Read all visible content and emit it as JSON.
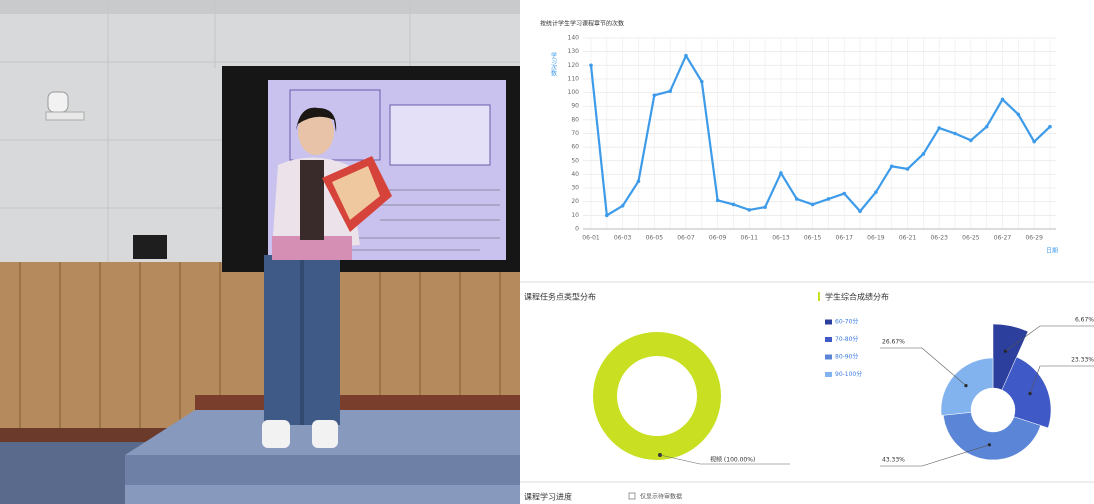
{
  "chart_data": [
    {
      "type": "line",
      "title": "按统计学生学习课程章节的次数",
      "ylabel": "学习次数",
      "xlabel": "日期",
      "categories": [
        "06-01",
        null,
        "06-03",
        null,
        "06-05",
        null,
        "06-07",
        null,
        "06-09",
        null,
        "06-11",
        null,
        "06-13",
        null,
        "06-15",
        null,
        "06-17",
        null,
        "06-19",
        null,
        "06-21",
        null,
        "06-23",
        null,
        "06-25",
        null,
        "06-27",
        null,
        "06-29",
        null
      ],
      "values": [
        120,
        10,
        17,
        35,
        98,
        101,
        127,
        108,
        21,
        18,
        14,
        16,
        41,
        22,
        18,
        22,
        26,
        13,
        27,
        46,
        44,
        55,
        74,
        70,
        65,
        75,
        95,
        84,
        64,
        75
      ],
      "color": "#3d9be9",
      "ylim": [
        0,
        140
      ],
      "yticks": [
        0,
        10,
        20,
        30,
        40,
        50,
        60,
        70,
        80,
        90,
        100,
        110,
        120,
        130,
        140
      ],
      "grid": true
    },
    {
      "type": "pie",
      "donut": true,
      "title": "课程任务点类型分布",
      "categories": [
        "视频"
      ],
      "values": [
        100
      ],
      "value_labels": [
        "视频 (100.00%)"
      ],
      "colors": [
        "#c8e021"
      ]
    },
    {
      "type": "pie",
      "donut": true,
      "rose": true,
      "title": "学生综合成绩分布",
      "legend": "left",
      "categories": [
        "60-70分",
        "70-80分",
        "80-90分",
        "90-100分"
      ],
      "values": [
        6.67,
        23.33,
        43.33,
        26.67
      ],
      "value_labels": [
        "6.67%",
        "23.33%",
        "43.33%",
        "26.67%"
      ],
      "colors": [
        "#2d3f9c",
        "#3f59c6",
        "#5b86d8",
        "#83b3ee"
      ]
    }
  ],
  "footer": {
    "title": "课程学习进度",
    "checkbox": "仅显示待审数据"
  }
}
